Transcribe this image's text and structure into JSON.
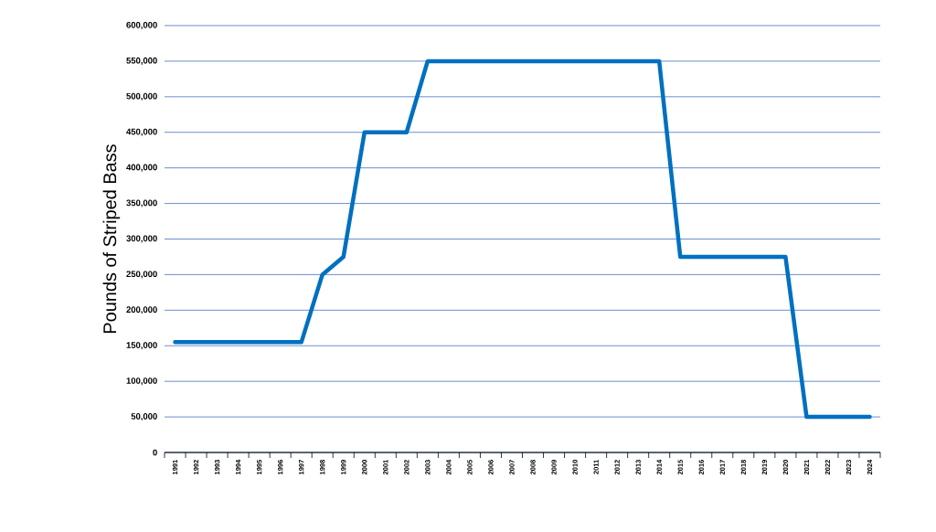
{
  "chart_data": {
    "type": "line",
    "ylabel": "Pounds of Striped Bass",
    "categories": [
      "1991",
      "1992",
      "1993",
      "1994",
      "1995",
      "1996",
      "1997",
      "1998",
      "1999",
      "2000",
      "2001",
      "2002",
      "2003",
      "2004",
      "2005",
      "2006",
      "2007",
      "2008",
      "2009",
      "2010",
      "2011",
      "2012",
      "2013",
      "2014",
      "2015",
      "2016",
      "2017",
      "2018",
      "2019",
      "2020",
      "2021",
      "2022",
      "2023",
      "2024"
    ],
    "series": [
      {
        "color": "#0070c0",
        "values": [
          155000,
          155000,
          155000,
          155000,
          155000,
          155000,
          155000,
          250000,
          275000,
          450000,
          450000,
          450000,
          550000,
          550000,
          550000,
          550000,
          550000,
          550000,
          550000,
          550000,
          550000,
          550000,
          550000,
          550000,
          275000,
          275000,
          275000,
          275000,
          275000,
          275000,
          50000,
          50000,
          50000,
          50000
        ]
      }
    ],
    "ylim": [
      0,
      600000
    ],
    "yticks": [
      {
        "value": 0,
        "label": "0"
      },
      {
        "value": 50000,
        "label": "50,000"
      },
      {
        "value": 100000,
        "label": "100,000"
      },
      {
        "value": 150000,
        "label": "150,000"
      },
      {
        "value": 200000,
        "label": "200,000"
      },
      {
        "value": 250000,
        "label": "250,000"
      },
      {
        "value": 300000,
        "label": "300,000"
      },
      {
        "value": 350000,
        "label": "350,000"
      },
      {
        "value": 400000,
        "label": "400,000"
      },
      {
        "value": 450000,
        "label": "450,000"
      },
      {
        "value": 500000,
        "label": "500,000"
      },
      {
        "value": 550000,
        "label": "550,000"
      },
      {
        "value": 600000,
        "label": "600,000"
      }
    ],
    "grid": "y",
    "marker": "none",
    "line_style": "solid"
  }
}
